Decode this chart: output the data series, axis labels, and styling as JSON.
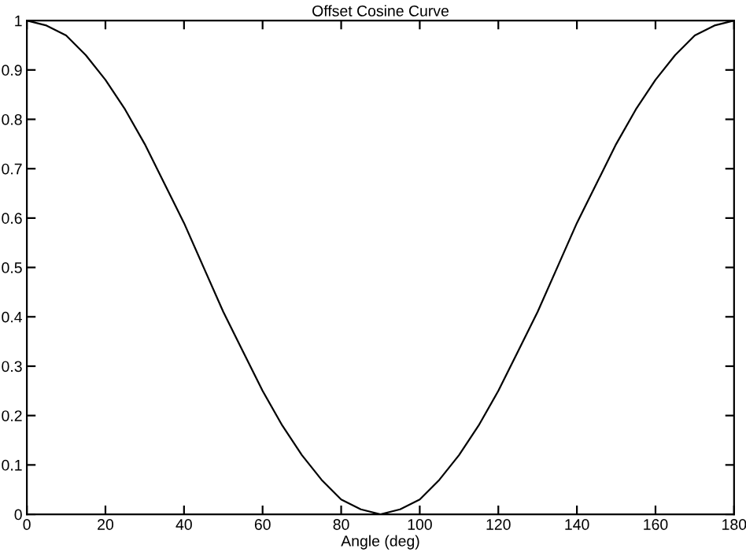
{
  "chart_data": {
    "type": "line",
    "title": "Offset Cosine Curve",
    "xlabel": "Angle (deg)",
    "series": [
      {
        "color": "#000000",
        "x": [
          0,
          5,
          10,
          15,
          20,
          25,
          30,
          35,
          40,
          45,
          50,
          55,
          60,
          65,
          70,
          75,
          80,
          85,
          90,
          95,
          100,
          105,
          110,
          115,
          120,
          125,
          130,
          135,
          140,
          145,
          150,
          155,
          160,
          165,
          170,
          175,
          180
        ],
        "values": [
          1,
          0.99,
          0.97,
          0.93,
          0.88,
          0.82,
          0.75,
          0.67,
          0.59,
          0.5,
          0.41,
          0.33,
          0.25,
          0.18,
          0.12,
          0.07,
          0.03,
          0.01,
          0,
          0.01,
          0.03,
          0.07,
          0.12,
          0.18,
          0.25,
          0.33,
          0.41,
          0.5,
          0.59,
          0.67,
          0.75,
          0.82,
          0.88,
          0.93,
          0.97,
          0.99,
          1
        ]
      }
    ],
    "xlim": [
      0,
      180
    ],
    "xticks": [
      0,
      20,
      40,
      60,
      80,
      100,
      120,
      140,
      160,
      180
    ],
    "ylim": [
      0,
      1
    ],
    "yticks": [
      0,
      0.1,
      0.2,
      0.3,
      0.4,
      0.5,
      0.6,
      0.7,
      0.8,
      0.9,
      1
    ],
    "grid": false,
    "legend": false,
    "marker": "none",
    "line_style": "solid"
  }
}
